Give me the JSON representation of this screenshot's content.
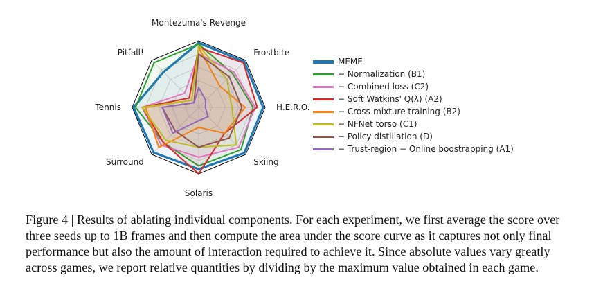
{
  "chart_data": {
    "type": "radar",
    "axes": [
      "Montezuma's Revenge",
      "Frostbite",
      "H.E.R.O.",
      "Skiing",
      "Solaris",
      "Surround",
      "Tennis",
      "Pitfall!"
    ],
    "range": [
      0,
      1
    ],
    "series": [
      {
        "name": "MEME",
        "color": "#1f77b4",
        "values": [
          0.97,
          0.97,
          0.97,
          0.97,
          0.93,
          0.96,
          0.98,
          0.75
        ]
      },
      {
        "name": "− Normalization (B1)",
        "color": "#2ca02c",
        "values": [
          0.95,
          0.72,
          0.82,
          0.9,
          0.88,
          0.75,
          0.95,
          0.95
        ]
      },
      {
        "name": "− Combined loss (C2)",
        "color": "#e377c2",
        "values": [
          0.8,
          0.75,
          0.85,
          0.85,
          0.75,
          0.8,
          0.85,
          0.3
        ]
      },
      {
        "name": "− Soft Watkins' Q(λ) (A2)",
        "color": "#d62728",
        "values": [
          0.9,
          0.95,
          0.88,
          0.55,
          1.0,
          0.75,
          0.85,
          0.2
        ]
      },
      {
        "name": "− Cross-mixture training (B2)",
        "color": "#ff7f0e",
        "values": [
          0.9,
          0.45,
          0.7,
          0.55,
          0.3,
          0.85,
          0.8,
          0.15
        ]
      },
      {
        "name": "− NFNet torso (C1)",
        "color": "#bcbd22",
        "values": [
          0.93,
          0.6,
          0.5,
          0.8,
          0.6,
          0.7,
          0.85,
          0.15
        ]
      },
      {
        "name": "− Policy distillation (D)",
        "color": "#8c564b",
        "values": [
          0.8,
          0.65,
          0.65,
          0.65,
          0.6,
          0.5,
          0.55,
          0.1
        ]
      },
      {
        "name": "− Trust-region − Online boostrapping (A1)",
        "color": "#9467bd",
        "values": [
          0.3,
          0.15,
          0.1,
          0.2,
          0.2,
          0.55,
          0.55,
          0.1
        ]
      }
    ]
  },
  "caption": "Figure 4 | Results of ablating individual components. For each experiment, we first average the score over three seeds up to 1B frames and then compute the area under the score curve as it captures not only final performance but also the amount of interaction required to achieve it. Since absolute values vary greatly across games, we report relative quantities by dividing by the maximum value obtained in each game."
}
